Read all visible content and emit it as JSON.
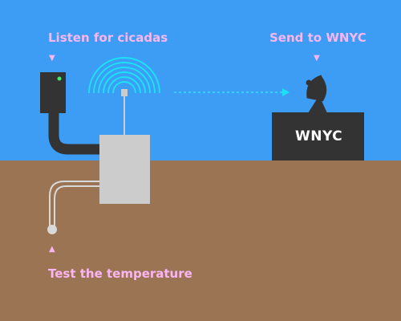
{
  "labels": {
    "listen": "Listen for cicadas",
    "send": "Send to WNYC",
    "test": "Test the temperature"
  },
  "station": {
    "name": "WNYC"
  },
  "colors": {
    "sky": "#3d9cf3",
    "ground": "#9b7454",
    "label": "#f9b6f3",
    "waves": "#1ee0f5",
    "box": "#cccccc",
    "dark": "#333333",
    "led": "#3ef06a",
    "probe": "#d9d9d9"
  },
  "icons": {
    "device": "sensor-device-icon",
    "waves": "radio-waves-icon",
    "dish": "satellite-dish-icon",
    "probe": "temperature-probe-icon",
    "arrows": "triangle-pointer-icon"
  }
}
